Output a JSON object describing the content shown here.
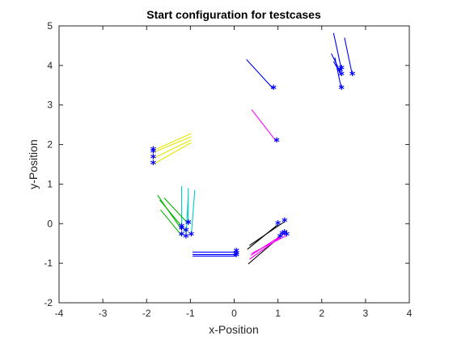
{
  "chart_data": {
    "type": "line",
    "title": "Start configuration for testcases",
    "xlabel": "x-Position",
    "ylabel": "y-Position",
    "xlim": [
      -4,
      4
    ],
    "ylim": [
      -2,
      5
    ],
    "xticks": [
      "-4",
      "-3",
      "-2",
      "-1",
      "0",
      "1",
      "2",
      "3",
      "4"
    ],
    "yticks": [
      "-2",
      "-1",
      "0",
      "1",
      "2",
      "3",
      "4",
      "5"
    ],
    "grid": false,
    "marker": "*",
    "marker_color": "#0000ff",
    "series": [
      {
        "color": "#0000ff",
        "segments": [
          [
            0.9,
            3.4,
            0.28,
            4.15
          ]
        ]
      },
      {
        "color": "#0000ff",
        "segments": [
          [
            2.45,
            3.9,
            2.27,
            4.82
          ],
          [
            2.42,
            3.85,
            2.22,
            4.3
          ],
          [
            2.45,
            3.75,
            2.27,
            4.1
          ],
          [
            2.7,
            3.75,
            2.52,
            4.7
          ],
          [
            2.45,
            3.4,
            2.3,
            4.2
          ]
        ]
      },
      {
        "color": "#ff00ff",
        "segments": [
          [
            0.97,
            2.07,
            0.4,
            2.88
          ]
        ]
      },
      {
        "color": "#e6e600",
        "segments": [
          [
            -1.85,
            1.85,
            -0.98,
            2.28
          ],
          [
            -1.85,
            1.8,
            -0.98,
            2.2
          ],
          [
            -1.85,
            1.65,
            -0.98,
            2.12
          ],
          [
            -1.85,
            1.5,
            -0.98,
            2.05
          ]
        ]
      },
      {
        "color": "#00cccc",
        "segments": [
          [
            -1.2,
            -0.1,
            -1.2,
            0.95
          ],
          [
            -1.05,
            0.0,
            -1.05,
            0.9
          ],
          [
            -0.98,
            -0.3,
            -0.9,
            0.85
          ],
          [
            -1.1,
            -0.35,
            -1.05,
            0.7
          ]
        ]
      },
      {
        "color": "#00b400",
        "segments": [
          [
            -1.2,
            -0.15,
            -1.75,
            0.72
          ],
          [
            -1.1,
            -0.2,
            -1.7,
            0.6
          ],
          [
            -1.2,
            -0.3,
            -1.68,
            0.35
          ],
          [
            -1.05,
            0.0,
            -1.6,
            0.65
          ]
        ]
      },
      {
        "color": "#0000ff",
        "segments": [
          [
            0.05,
            -0.72,
            -0.95,
            -0.72
          ],
          [
            0.05,
            -0.78,
            -0.95,
            -0.78
          ],
          [
            0.05,
            -0.82,
            -0.95,
            -0.82
          ]
        ]
      },
      {
        "color": "#000000",
        "segments": [
          [
            1.0,
            -0.02,
            0.3,
            -0.65
          ],
          [
            1.15,
            0.05,
            0.35,
            -0.55
          ],
          [
            1.1,
            -0.28,
            0.32,
            -1.02
          ]
        ]
      },
      {
        "color": "#ff00ff",
        "segments": [
          [
            1.05,
            -0.35,
            0.35,
            -0.9
          ],
          [
            1.15,
            -0.25,
            0.38,
            -0.8
          ],
          [
            1.2,
            -0.3,
            0.4,
            -0.75
          ]
        ]
      }
    ]
  }
}
